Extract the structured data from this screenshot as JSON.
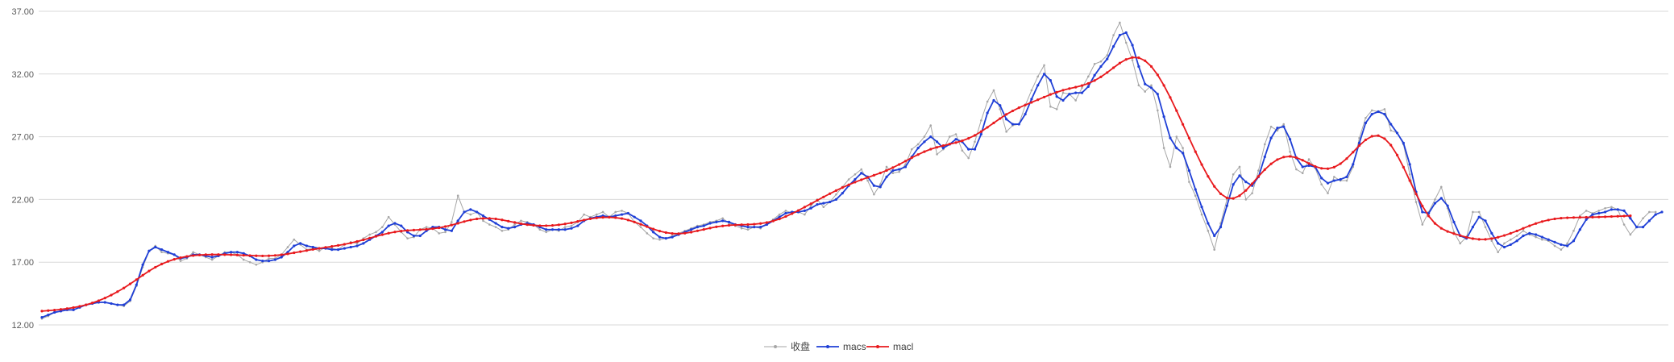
{
  "chart_data": {
    "type": "line",
    "title": "",
    "xlabel": "",
    "ylabel": "",
    "ylim": [
      12,
      37
    ],
    "yticks": [
      "12.00",
      "17.00",
      "22.00",
      "27.00",
      "32.00",
      "37.00"
    ],
    "grid": "horizontal",
    "legend_position": "bottom",
    "x_count": 258,
    "series": [
      {
        "name": "收盘",
        "color": "#a6a6a6",
        "values": [
          12.5,
          12.7,
          13.0,
          13.1,
          13.2,
          13.2,
          13.4,
          13.6,
          13.7,
          13.8,
          13.8,
          13.7,
          13.6,
          13.5,
          13.9,
          15.1,
          16.6,
          17.9,
          18.3,
          17.8,
          17.7,
          17.6,
          17.1,
          17.3,
          17.8,
          17.6,
          17.4,
          17.2,
          17.5,
          17.8,
          17.8,
          17.6,
          17.2,
          17.0,
          16.8,
          17.0,
          17.3,
          17.3,
          17.6,
          18.2,
          18.8,
          18.4,
          18.0,
          18.1,
          17.9,
          18.2,
          18.1,
          18.0,
          18.4,
          18.6,
          18.5,
          18.9,
          19.2,
          19.4,
          19.8,
          20.6,
          20.0,
          19.4,
          18.9,
          19.0,
          19.6,
          19.8,
          19.7,
          19.3,
          19.4,
          20.2,
          22.3,
          21.0,
          20.8,
          21.0,
          20.3,
          20.0,
          19.8,
          19.5,
          19.6,
          20.0,
          20.3,
          20.2,
          20.0,
          19.6,
          19.4,
          19.6,
          19.5,
          19.8,
          19.9,
          20.2,
          20.8,
          20.6,
          20.8,
          21.0,
          20.6,
          21.0,
          21.1,
          20.9,
          20.2,
          19.8,
          19.3,
          18.9,
          18.8,
          18.9,
          19.1,
          19.3,
          19.5,
          19.7,
          19.9,
          20.0,
          20.2,
          20.3,
          20.5,
          20.1,
          19.9,
          19.7,
          19.6,
          19.8,
          19.7,
          20.1,
          20.4,
          20.8,
          21.1,
          20.9,
          21.0,
          20.8,
          21.5,
          22.0,
          21.4,
          21.8,
          22.4,
          23.0,
          23.6,
          24.0,
          24.4,
          23.5,
          22.4,
          23.2,
          24.6,
          24.1,
          24.2,
          24.8,
          26.0,
          26.4,
          27.0,
          27.9,
          25.6,
          26.0,
          27.0,
          27.2,
          25.9,
          25.3,
          26.6,
          28.3,
          29.8,
          30.7,
          29.2,
          27.4,
          27.9,
          28.0,
          29.5,
          30.7,
          31.8,
          32.7,
          29.4,
          29.2,
          30.5,
          30.4,
          29.9,
          30.9,
          31.8,
          32.8,
          33.0,
          33.5,
          35.1,
          36.1,
          34.5,
          33.1,
          31.1,
          30.6,
          31.1,
          29.1,
          26.1,
          24.6,
          27.0,
          26.1,
          23.4,
          22.3,
          20.8,
          19.5,
          18.0,
          20.1,
          22.0,
          24.0,
          24.6,
          22.0,
          22.5,
          24.3,
          26.4,
          27.8,
          27.5,
          28.0,
          25.8,
          24.4,
          24.1,
          25.2,
          24.5,
          23.2,
          22.5,
          23.8,
          23.5,
          23.5,
          24.6,
          26.9,
          28.5,
          29.1,
          29.0,
          29.2,
          27.5,
          27.3,
          26.4,
          24.0,
          21.8,
          20.0,
          21.0,
          22.0,
          23.0,
          21.3,
          19.4,
          18.5,
          19.0,
          21.0,
          21.0,
          19.8,
          18.7,
          17.8,
          18.5,
          18.8,
          19.1,
          19.5,
          19.2,
          19.0,
          18.8,
          18.7,
          18.3,
          18.0,
          18.5,
          19.5,
          20.7,
          21.1,
          20.9,
          21.1,
          21.3,
          21.4,
          21.2,
          20.0,
          19.2,
          19.8,
          20.5,
          21.0,
          21.0
        ]
      },
      {
        "name": "macs",
        "color": "#1f3fd6",
        "values": [
          12.6,
          12.8,
          13.0,
          13.1,
          13.2,
          13.2,
          13.4,
          13.6,
          13.7,
          13.8,
          13.8,
          13.7,
          13.6,
          13.6,
          14.0,
          15.2,
          16.8,
          17.9,
          18.2,
          18.0,
          17.8,
          17.6,
          17.3,
          17.4,
          17.6,
          17.6,
          17.5,
          17.4,
          17.5,
          17.7,
          17.8,
          17.8,
          17.7,
          17.5,
          17.2,
          17.1,
          17.1,
          17.2,
          17.4,
          17.8,
          18.3,
          18.5,
          18.3,
          18.2,
          18.1,
          18.1,
          18.0,
          18.0,
          18.1,
          18.2,
          18.3,
          18.5,
          18.8,
          19.1,
          19.4,
          19.9,
          20.1,
          19.9,
          19.4,
          19.1,
          19.1,
          19.5,
          19.8,
          19.8,
          19.6,
          19.5,
          20.3,
          21.0,
          21.2,
          21.0,
          20.7,
          20.4,
          20.1,
          19.8,
          19.7,
          19.8,
          20.0,
          20.1,
          20.0,
          19.8,
          19.6,
          19.6,
          19.6,
          19.6,
          19.7,
          19.9,
          20.3,
          20.5,
          20.6,
          20.7,
          20.6,
          20.7,
          20.8,
          20.9,
          20.6,
          20.3,
          19.9,
          19.4,
          19.0,
          18.9,
          19.0,
          19.2,
          19.4,
          19.6,
          19.8,
          19.9,
          20.1,
          20.2,
          20.3,
          20.2,
          20.0,
          19.9,
          19.8,
          19.8,
          19.8,
          20.0,
          20.3,
          20.6,
          20.9,
          21.0,
          21.0,
          21.1,
          21.3,
          21.6,
          21.7,
          21.8,
          22.0,
          22.5,
          23.1,
          23.6,
          24.1,
          23.8,
          23.1,
          23.0,
          23.8,
          24.3,
          24.4,
          24.6,
          25.4,
          26.1,
          26.6,
          27.0,
          26.6,
          26.1,
          26.4,
          26.8,
          26.6,
          26.0,
          26.0,
          27.2,
          28.9,
          29.9,
          29.5,
          28.4,
          28.0,
          28.0,
          28.8,
          30.0,
          31.1,
          32.0,
          31.5,
          30.2,
          29.9,
          30.4,
          30.5,
          30.5,
          31.0,
          31.9,
          32.6,
          33.2,
          34.2,
          35.1,
          35.3,
          34.3,
          32.6,
          31.2,
          30.9,
          30.4,
          28.6,
          26.9,
          26.1,
          25.7,
          24.3,
          22.8,
          21.4,
          20.1,
          19.1,
          19.8,
          21.5,
          23.2,
          23.9,
          23.4,
          23.1,
          23.8,
          25.4,
          26.9,
          27.7,
          27.8,
          26.8,
          25.3,
          24.6,
          24.7,
          24.6,
          23.7,
          23.3,
          23.5,
          23.6,
          23.8,
          24.8,
          26.5,
          28.1,
          28.8,
          29.0,
          28.8,
          28.0,
          27.3,
          26.5,
          24.8,
          22.6,
          21.0,
          20.9,
          21.7,
          22.1,
          21.5,
          20.2,
          19.1,
          18.9,
          19.8,
          20.6,
          20.3,
          19.3,
          18.5,
          18.2,
          18.4,
          18.7,
          19.1,
          19.3,
          19.2,
          19.0,
          18.8,
          18.6,
          18.4,
          18.3,
          18.7,
          19.6,
          20.4,
          20.8,
          20.9,
          21.0,
          21.2,
          21.2,
          21.1,
          20.5,
          19.8,
          19.8,
          20.3,
          20.8,
          21.0
        ]
      },
      {
        "name": "macl",
        "color": "#e8191d",
        "values": [
          13.1,
          13.14,
          13.18,
          13.24,
          13.3,
          13.38,
          13.48,
          13.6,
          13.75,
          13.93,
          14.14,
          14.38,
          14.65,
          14.94,
          15.27,
          15.61,
          15.96,
          16.3,
          16.6,
          16.85,
          17.06,
          17.23,
          17.36,
          17.46,
          17.53,
          17.57,
          17.6,
          17.61,
          17.61,
          17.6,
          17.59,
          17.57,
          17.55,
          17.53,
          17.51,
          17.5,
          17.51,
          17.54,
          17.59,
          17.66,
          17.75,
          17.84,
          17.93,
          18.02,
          18.1,
          18.18,
          18.26,
          18.34,
          18.43,
          18.53,
          18.65,
          18.78,
          18.92,
          19.06,
          19.19,
          19.31,
          19.41,
          19.48,
          19.53,
          19.56,
          19.59,
          19.62,
          19.67,
          19.74,
          19.84,
          19.96,
          20.1,
          20.24,
          20.36,
          20.45,
          20.49,
          20.49,
          20.45,
          20.37,
          20.27,
          20.17,
          20.07,
          19.99,
          19.94,
          19.91,
          19.91,
          19.93,
          19.98,
          20.05,
          20.14,
          20.25,
          20.36,
          20.46,
          20.53,
          20.57,
          20.58,
          20.55,
          20.48,
          20.36,
          20.2,
          20.02,
          19.83,
          19.64,
          19.48,
          19.36,
          19.29,
          19.27,
          19.31,
          19.39,
          19.5,
          19.61,
          19.72,
          19.82,
          19.89,
          19.94,
          19.97,
          19.99,
          20.0,
          20.03,
          20.08,
          20.16,
          20.28,
          20.44,
          20.64,
          20.87,
          21.12,
          21.39,
          21.66,
          21.93,
          22.2,
          22.46,
          22.71,
          22.95,
          23.17,
          23.38,
          23.57,
          23.75,
          23.93,
          24.11,
          24.31,
          24.54,
          24.79,
          25.06,
          25.33,
          25.58,
          25.81,
          26.01,
          26.16,
          26.29,
          26.41,
          26.53,
          26.68,
          26.87,
          27.11,
          27.41,
          27.75,
          28.1,
          28.45,
          28.78,
          29.06,
          29.31,
          29.53,
          29.74,
          29.95,
          30.16,
          30.37,
          30.55,
          30.71,
          30.84,
          30.95,
          31.08,
          31.25,
          31.48,
          31.77,
          32.12,
          32.5,
          32.87,
          33.16,
          33.32,
          33.3,
          33.06,
          32.6,
          31.93,
          31.09,
          30.13,
          29.08,
          27.99,
          26.89,
          25.81,
          24.78,
          23.84,
          23.04,
          22.45,
          22.12,
          22.08,
          22.3,
          22.72,
          23.26,
          23.84,
          24.38,
          24.84,
          25.18,
          25.38,
          25.43,
          25.34,
          25.13,
          24.87,
          24.63,
          24.48,
          24.45,
          24.57,
          24.85,
          25.26,
          25.77,
          26.3,
          26.75,
          27.04,
          27.09,
          26.85,
          26.33,
          25.54,
          24.57,
          23.5,
          22.44,
          21.48,
          20.68,
          20.09,
          19.7,
          19.45,
          19.28,
          19.13,
          18.99,
          18.88,
          18.82,
          18.82,
          18.88,
          18.99,
          19.13,
          19.3,
          19.49,
          19.7,
          19.9,
          20.08,
          20.24,
          20.36,
          20.45,
          20.51,
          20.54,
          20.56,
          20.57,
          20.58,
          20.59,
          20.6,
          20.62,
          20.64,
          20.66,
          20.68,
          20.7
        ]
      }
    ]
  }
}
